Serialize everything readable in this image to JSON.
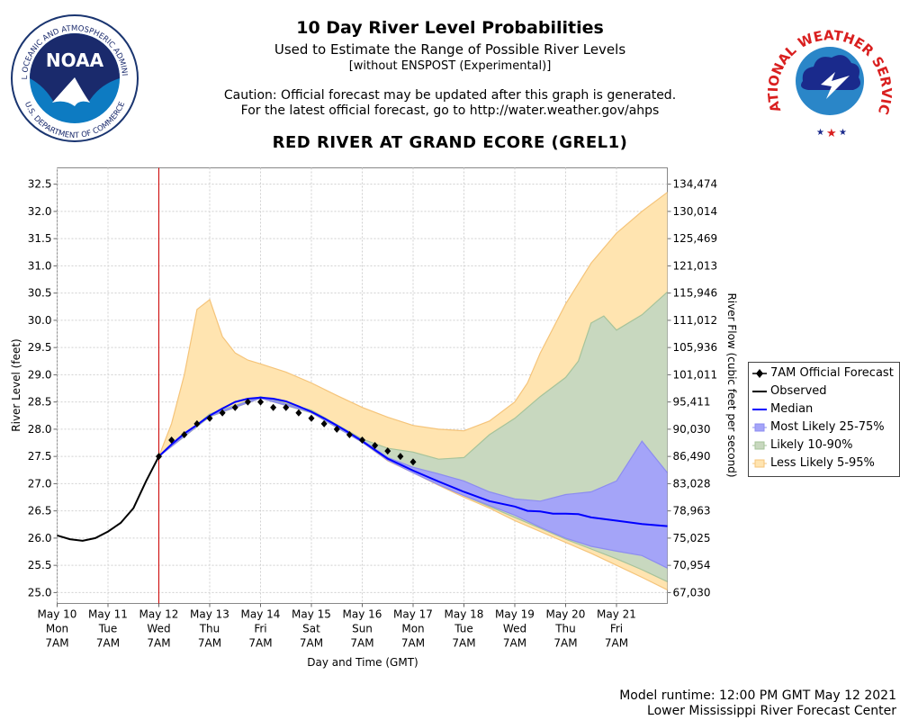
{
  "header": {
    "title": "10 Day River Level Probabilities",
    "subtitle": "Used to Estimate the Range of Possible River Levels",
    "subnote": "[without ENSPOST (Experimental)]",
    "caution_line1": "Caution: Official forecast may be updated after this graph is generated.",
    "caution_line2": "For the latest official forecast, go to http://water.weather.gov/ahps",
    "station": "RED RIVER AT GRAND ECORE (GREL1)"
  },
  "logos": {
    "noaa_text": "NOAA",
    "noaa_ring_text": "NATIONAL OCEANIC AND ATMOSPHERIC ADMINISTRATION",
    "noaa_ring_bottom": "U.S. DEPARTMENT OF COMMERCE",
    "nws_ring_text": "NATIONAL WEATHER SERVICE"
  },
  "footer": {
    "runtime": "Model runtime: 12:00 PM GMT May 12 2021",
    "center": "Lower Mississippi River Forecast Center"
  },
  "colors": {
    "band_5_95": "#ffe4b0",
    "band_5_95_edge": "#f5c47a",
    "band_10_90": "#c8d8bf",
    "band_10_90_edge": "#a6c39a",
    "band_25_75": "#a4a4f8",
    "band_25_75_edge": "#8c8cf0",
    "median": "#0000ff",
    "observed": "#000000",
    "forecast": "#000000",
    "current_time_line": "#cc0000"
  },
  "chart_data": {
    "type": "area",
    "xlabel": "Day and Time (GMT)",
    "ylabel": "River Level (feet)",
    "y2label": "River Flow (cubic feet per second)",
    "ylim": [
      24.8,
      32.8
    ],
    "xlim_days_from_may10_7am": [
      0,
      12
    ],
    "grid": true,
    "legend_position": "right",
    "current_time": "May 12 7AM",
    "y_ticks": [
      "25.0",
      "25.5",
      "26.0",
      "26.5",
      "27.0",
      "27.5",
      "28.0",
      "28.5",
      "29.0",
      "29.5",
      "30.0",
      "30.5",
      "31.0",
      "31.5",
      "32.0",
      "32.5"
    ],
    "y2_ticks": [
      {
        "stage": 25.0,
        "label": "67,030"
      },
      {
        "stage": 25.5,
        "label": "70,954"
      },
      {
        "stage": 26.0,
        "label": "75,025"
      },
      {
        "stage": 26.5,
        "label": "78,963"
      },
      {
        "stage": 27.0,
        "label": "83,028"
      },
      {
        "stage": 27.5,
        "label": "86,490"
      },
      {
        "stage": 28.0,
        "label": "90,030"
      },
      {
        "stage": 28.5,
        "label": "95,411"
      },
      {
        "stage": 29.0,
        "label": "101,011"
      },
      {
        "stage": 29.5,
        "label": "105,936"
      },
      {
        "stage": 30.0,
        "label": "111,012"
      },
      {
        "stage": 30.5,
        "label": "115,946"
      },
      {
        "stage": 31.0,
        "label": "121,013"
      },
      {
        "stage": 31.5,
        "label": "125,469"
      },
      {
        "stage": 32.0,
        "label": "130,014"
      },
      {
        "stage": 32.5,
        "label": "134,474"
      }
    ],
    "x_ticks": [
      {
        "day": 0,
        "date": "May 10",
        "dow": "Mon",
        "time": "7AM"
      },
      {
        "day": 1,
        "date": "May 11",
        "dow": "Tue",
        "time": "7AM"
      },
      {
        "day": 2,
        "date": "May 12",
        "dow": "Wed",
        "time": "7AM"
      },
      {
        "day": 3,
        "date": "May 13",
        "dow": "Thu",
        "time": "7AM"
      },
      {
        "day": 4,
        "date": "May 14",
        "dow": "Fri",
        "time": "7AM"
      },
      {
        "day": 5,
        "date": "May 15",
        "dow": "Sat",
        "time": "7AM"
      },
      {
        "day": 6,
        "date": "May 16",
        "dow": "Sun",
        "time": "7AM"
      },
      {
        "day": 7,
        "date": "May 17",
        "dow": "Mon",
        "time": "7AM"
      },
      {
        "day": 8,
        "date": "May 18",
        "dow": "Tue",
        "time": "7AM"
      },
      {
        "day": 9,
        "date": "May 19",
        "dow": "Wed",
        "time": "7AM"
      },
      {
        "day": 10,
        "date": "May 20",
        "dow": "Thu",
        "time": "7AM"
      },
      {
        "day": 11,
        "date": "May 21",
        "dow": "Fri",
        "time": "7AM"
      }
    ],
    "legend": [
      {
        "key": "forecast",
        "label": "7AM Official Forecast"
      },
      {
        "key": "observed",
        "label": "Observed"
      },
      {
        "key": "median",
        "label": "Median"
      },
      {
        "key": "p25_75",
        "label": "Most Likely 25-75%"
      },
      {
        "key": "p10_90",
        "label": "Likely 10-90%"
      },
      {
        "key": "p5_95",
        "label": "Less Likely 5-95%"
      }
    ],
    "series": {
      "observed": [
        [
          0,
          26.05
        ],
        [
          0.25,
          25.98
        ],
        [
          0.5,
          25.95
        ],
        [
          0.75,
          26.0
        ],
        [
          1,
          26.12
        ],
        [
          1.25,
          26.28
        ],
        [
          1.5,
          26.55
        ],
        [
          1.75,
          27.05
        ],
        [
          2,
          27.5
        ]
      ],
      "median": [
        [
          2,
          27.5
        ],
        [
          2.25,
          27.72
        ],
        [
          2.5,
          27.92
        ],
        [
          2.75,
          28.08
        ],
        [
          3,
          28.25
        ],
        [
          3.25,
          28.38
        ],
        [
          3.5,
          28.5
        ],
        [
          3.75,
          28.56
        ],
        [
          4,
          28.58
        ],
        [
          4.25,
          28.56
        ],
        [
          4.5,
          28.51
        ],
        [
          4.75,
          28.42
        ],
        [
          5,
          28.32
        ],
        [
          5.25,
          28.2
        ],
        [
          5.5,
          28.07
        ],
        [
          5.75,
          27.93
        ],
        [
          6,
          27.78
        ],
        [
          6.25,
          27.62
        ],
        [
          6.5,
          27.46
        ],
        [
          6.75,
          27.35
        ],
        [
          7,
          27.24
        ],
        [
          7.5,
          27.04
        ],
        [
          8,
          26.85
        ],
        [
          8.5,
          26.68
        ],
        [
          9,
          26.58
        ],
        [
          9.25,
          26.5
        ],
        [
          9.5,
          26.49
        ],
        [
          9.75,
          26.45
        ],
        [
          10,
          26.45
        ],
        [
          10.25,
          26.44
        ],
        [
          10.5,
          26.38
        ],
        [
          11,
          26.32
        ],
        [
          11.5,
          26.26
        ],
        [
          12,
          26.22
        ]
      ],
      "forecast": [
        [
          2,
          27.5
        ],
        [
          2.25,
          27.8
        ],
        [
          2.5,
          27.9
        ],
        [
          2.75,
          28.1
        ],
        [
          3,
          28.2
        ],
        [
          3.25,
          28.3
        ],
        [
          3.5,
          28.4
        ],
        [
          3.75,
          28.5
        ],
        [
          4,
          28.5
        ],
        [
          4.25,
          28.4
        ],
        [
          4.5,
          28.4
        ],
        [
          4.75,
          28.3
        ],
        [
          5,
          28.2
        ],
        [
          5.25,
          28.1
        ],
        [
          5.5,
          28.0
        ],
        [
          5.75,
          27.9
        ],
        [
          6,
          27.8
        ],
        [
          6.25,
          27.7
        ],
        [
          6.5,
          27.6
        ],
        [
          6.75,
          27.5
        ],
        [
          7,
          27.4
        ]
      ],
      "p5_95": {
        "upper": [
          [
            2,
            27.5
          ],
          [
            2.25,
            28.1
          ],
          [
            2.5,
            29.0
          ],
          [
            2.75,
            30.2
          ],
          [
            3,
            30.38
          ],
          [
            3.25,
            29.7
          ],
          [
            3.5,
            29.4
          ],
          [
            3.75,
            29.27
          ],
          [
            4,
            29.2
          ],
          [
            4.5,
            29.05
          ],
          [
            5,
            28.85
          ],
          [
            5.5,
            28.62
          ],
          [
            6,
            28.4
          ],
          [
            6.5,
            28.22
          ],
          [
            7,
            28.07
          ],
          [
            7.5,
            28.0
          ],
          [
            8,
            27.97
          ],
          [
            8.5,
            28.15
          ],
          [
            9,
            28.5
          ],
          [
            9.25,
            28.85
          ],
          [
            9.5,
            29.4
          ],
          [
            10,
            30.3
          ],
          [
            10.5,
            31.05
          ],
          [
            11,
            31.6
          ],
          [
            11.5,
            32.0
          ],
          [
            12,
            32.35
          ]
        ],
        "lower": [
          [
            2,
            27.5
          ],
          [
            3,
            28.23
          ],
          [
            4,
            28.57
          ],
          [
            5,
            28.3
          ],
          [
            6,
            27.76
          ],
          [
            6.5,
            27.42
          ],
          [
            7,
            27.2
          ],
          [
            7.5,
            26.97
          ],
          [
            8,
            26.75
          ],
          [
            8.5,
            26.55
          ],
          [
            9,
            26.32
          ],
          [
            9.5,
            26.12
          ],
          [
            10,
            25.92
          ],
          [
            10.5,
            25.72
          ],
          [
            11,
            25.5
          ],
          [
            11.5,
            25.28
          ],
          [
            12,
            25.05
          ]
        ]
      },
      "p10_90": {
        "upper": [
          [
            2,
            27.5
          ],
          [
            3,
            28.28
          ],
          [
            4,
            28.6
          ],
          [
            5,
            28.35
          ],
          [
            6,
            27.82
          ],
          [
            6.5,
            27.65
          ],
          [
            7,
            27.58
          ],
          [
            7.5,
            27.45
          ],
          [
            8,
            27.48
          ],
          [
            8.5,
            27.9
          ],
          [
            9,
            28.2
          ],
          [
            9.5,
            28.6
          ],
          [
            10,
            28.95
          ],
          [
            10.25,
            29.25
          ],
          [
            10.5,
            29.95
          ],
          [
            10.75,
            30.08
          ],
          [
            11,
            29.82
          ],
          [
            11.5,
            30.1
          ],
          [
            12,
            30.52
          ]
        ],
        "lower": [
          [
            2,
            27.5
          ],
          [
            3,
            28.23
          ],
          [
            4,
            28.57
          ],
          [
            5,
            28.3
          ],
          [
            6,
            27.76
          ],
          [
            6.5,
            27.45
          ],
          [
            7,
            27.22
          ],
          [
            7.5,
            27.0
          ],
          [
            8,
            26.78
          ],
          [
            8.5,
            26.58
          ],
          [
            9,
            26.38
          ],
          [
            9.5,
            26.18
          ],
          [
            10,
            25.98
          ],
          [
            10.5,
            25.8
          ],
          [
            11,
            25.62
          ],
          [
            11.5,
            25.42
          ],
          [
            12,
            25.2
          ]
        ]
      },
      "p25_75": {
        "upper": [
          [
            2,
            27.5
          ],
          [
            3,
            28.26
          ],
          [
            4,
            28.59
          ],
          [
            5,
            28.33
          ],
          [
            6,
            27.8
          ],
          [
            6.5,
            27.48
          ],
          [
            7,
            27.3
          ],
          [
            7.5,
            27.18
          ],
          [
            8,
            27.05
          ],
          [
            8.5,
            26.85
          ],
          [
            9,
            26.72
          ],
          [
            9.5,
            26.68
          ],
          [
            10,
            26.8
          ],
          [
            10.5,
            26.85
          ],
          [
            11,
            27.05
          ],
          [
            11.5,
            27.78
          ],
          [
            12,
            27.2
          ]
        ],
        "lower": [
          [
            2,
            27.5
          ],
          [
            3,
            28.24
          ],
          [
            4,
            28.57
          ],
          [
            5,
            28.31
          ],
          [
            6,
            27.76
          ],
          [
            6.5,
            27.43
          ],
          [
            7,
            27.2
          ],
          [
            7.5,
            26.98
          ],
          [
            8,
            26.78
          ],
          [
            8.5,
            26.6
          ],
          [
            9,
            26.42
          ],
          [
            9.5,
            26.2
          ],
          [
            10,
            26.0
          ],
          [
            10.5,
            25.85
          ],
          [
            11,
            25.76
          ],
          [
            11.5,
            25.68
          ],
          [
            12,
            25.45
          ]
        ]
      }
    }
  }
}
